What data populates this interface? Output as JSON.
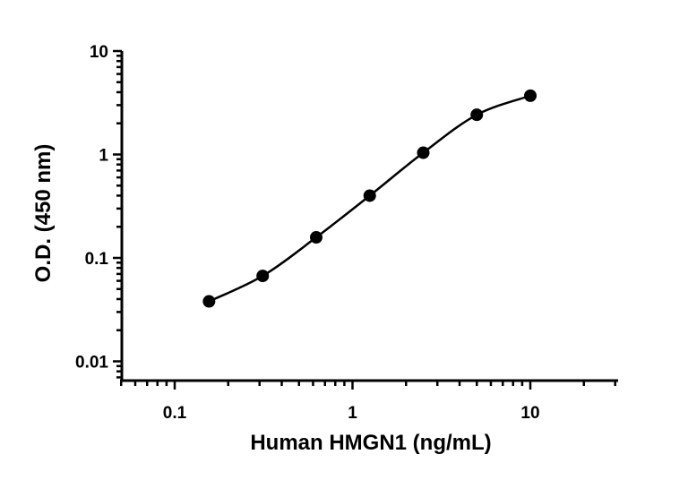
{
  "chart_data": {
    "type": "scatter",
    "title": "",
    "xlabel": "Human HMGN1 (ng/mL)",
    "ylabel": "O.D. (450 nm)",
    "xscale": "log",
    "yscale": "log",
    "xlim": [
      0.05,
      30
    ],
    "ylim": [
      0.007,
      10
    ],
    "xticks": [
      0.1,
      1,
      10
    ],
    "xtick_labels": [
      "0.1",
      "1",
      "10"
    ],
    "yticks": [
      0.01,
      0.1,
      1,
      10
    ],
    "ytick_labels": [
      "0.01",
      "0.1",
      "1",
      "10"
    ],
    "grid": false,
    "legend": "none",
    "series": [
      {
        "x": [
          0.156,
          0.3125,
          0.625,
          1.25,
          2.5,
          5,
          10
        ],
        "y": [
          0.038,
          0.067,
          0.158,
          0.4,
          1.04,
          2.42,
          3.7
        ],
        "fit": "4PL curve",
        "color": "#000000"
      }
    ]
  }
}
